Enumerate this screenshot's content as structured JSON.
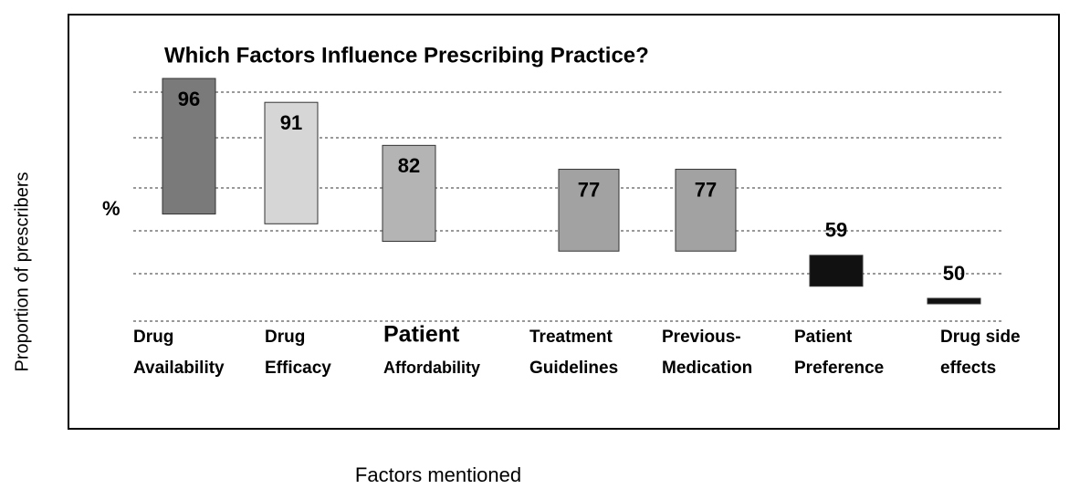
{
  "chart_data": {
    "type": "bar",
    "title": "Which Factors Influence Prescribing Practice?",
    "y_label": "Proportion of prescribers",
    "y_unit": "%",
    "x_label": "Factors mentioned",
    "categories": [
      [
        "Drug",
        "Availability"
      ],
      [
        "Drug",
        "Efficacy"
      ],
      [
        "Patient",
        "Affordability"
      ],
      [
        "Treatment",
        "Guidelines"
      ],
      [
        "Previous-",
        "Medication"
      ],
      [
        "Patient",
        "Preference"
      ],
      [
        "Drug side",
        "effects"
      ]
    ],
    "values": [
      96,
      91,
      82,
      77,
      77,
      59,
      50
    ],
    "colors": [
      "#7a7a7a",
      "#d6d6d6",
      "#b4b4b4",
      "#a2a2a2",
      "#a2a2a2",
      "#111111",
      "#111111"
    ],
    "grid": true
  }
}
